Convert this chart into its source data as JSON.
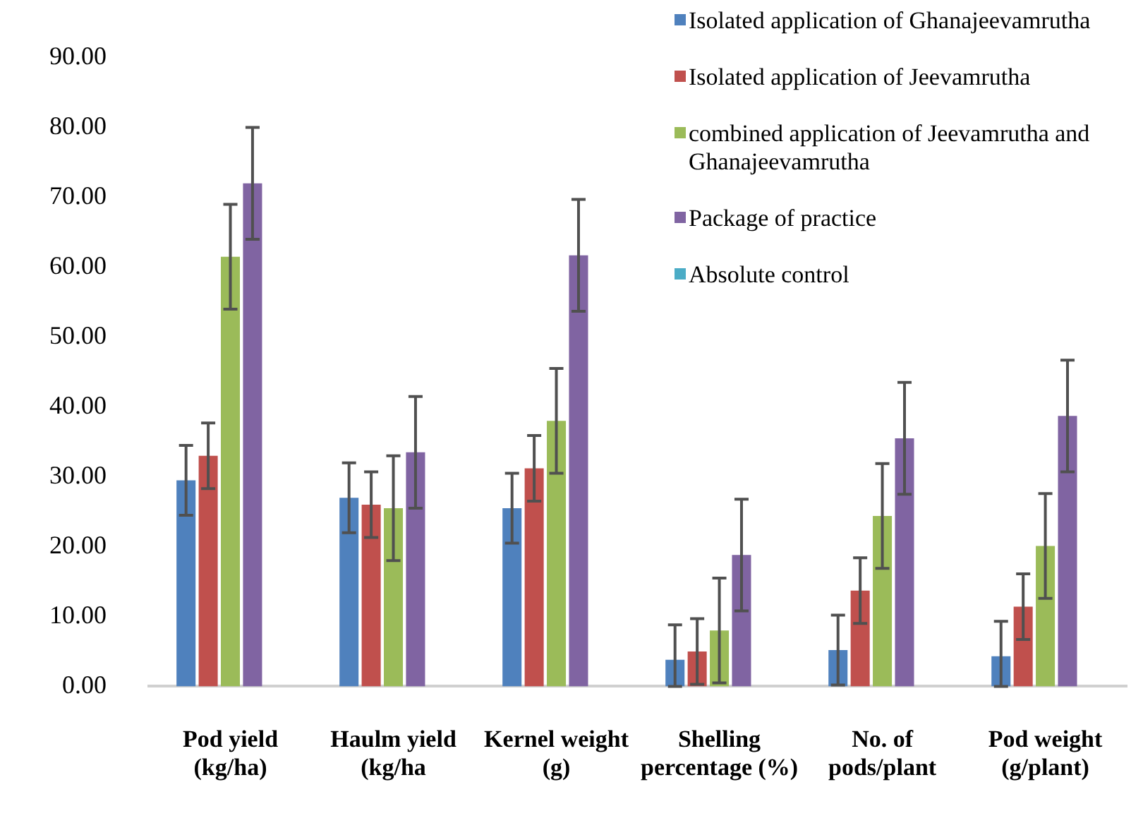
{
  "chart_data": {
    "type": "bar",
    "categories": [
      "Pod yield\n(kg/ha)",
      "Haulm yield\n(kg/ha",
      "Kernel weight\n(g)",
      "Shelling\npercentage (%)",
      "No. of\npods/plant",
      "Pod weight\n(g/plant)"
    ],
    "series": [
      {
        "name": "Isolated application of Ghanajeevamrutha",
        "color": "#4f81bd",
        "values": [
          29.5,
          27,
          25.5,
          3.8,
          5.2,
          4.3
        ],
        "errors": [
          5,
          5,
          5,
          [
            0,
            8.8
          ],
          5,
          [
            0,
            9.3
          ]
        ]
      },
      {
        "name": "Isolated application of Jeevamrutha",
        "color": "#c0504d",
        "values": [
          33,
          26,
          31.2,
          5,
          13.7,
          11.4
        ],
        "errors": [
          4.7,
          4.7,
          4.7,
          4.7,
          4.7,
          4.7
        ]
      },
      {
        "name": "combined application of Jeevamrutha and Ghanajeevamrutha",
        "color": "#9bbb59",
        "values": [
          61.5,
          25.5,
          38,
          8,
          24.4,
          20.1
        ],
        "errors": [
          7.5,
          7.5,
          7.5,
          7.5,
          7.5,
          7.5
        ]
      },
      {
        "name": "Package of practice",
        "color": "#8064a2",
        "values": [
          72,
          33.5,
          61.7,
          18.8,
          35.5,
          38.7
        ],
        "errors": [
          8,
          8,
          8,
          8,
          8,
          8
        ]
      },
      {
        "name": "Absolute control",
        "color": "#4bacc6",
        "values": [
          null,
          null,
          null,
          null,
          null,
          null
        ]
      }
    ],
    "ylim": [
      0,
      90
    ],
    "yticks": [
      {
        "value": 0,
        "label": "0.00"
      },
      {
        "value": 10,
        "label": "10.00"
      },
      {
        "value": 20,
        "label": "20.00"
      },
      {
        "value": 30,
        "label": "30.00"
      },
      {
        "value": 40,
        "label": "40.00"
      },
      {
        "value": 50,
        "label": "50.00"
      },
      {
        "value": 60,
        "label": "60.00"
      },
      {
        "value": 70,
        "label": "70.00"
      },
      {
        "value": 80,
        "label": "80.00"
      },
      {
        "value": 90,
        "label": "90.00"
      }
    ],
    "grid": false,
    "legend": "top right"
  }
}
